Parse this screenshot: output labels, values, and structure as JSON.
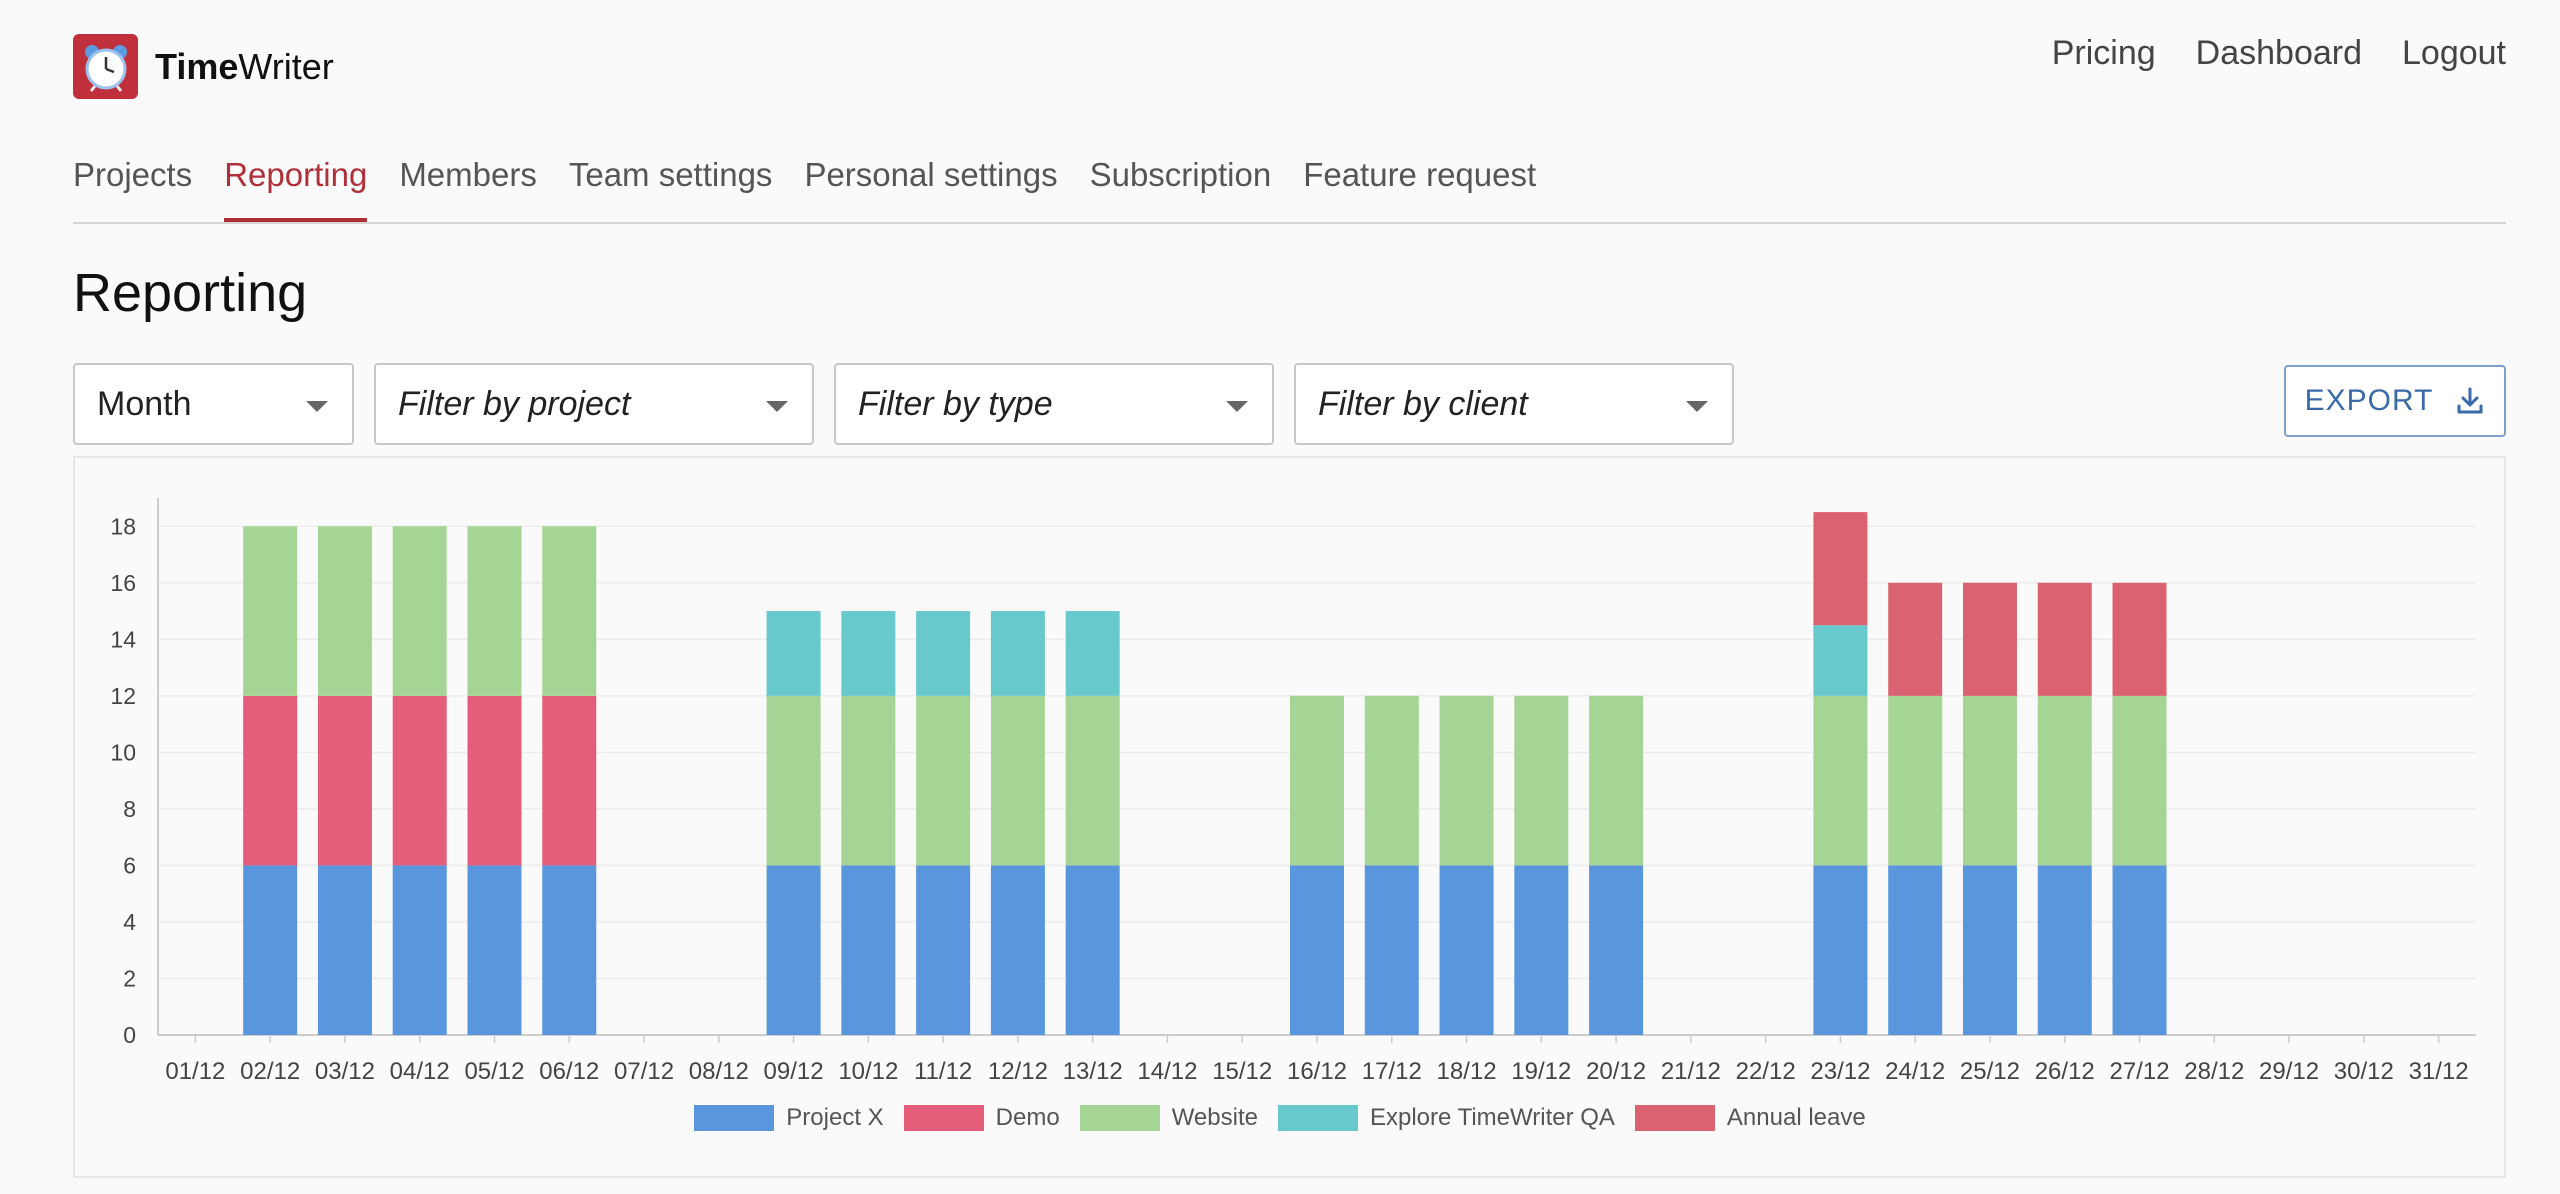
{
  "header": {
    "brand_bold": "Time",
    "brand_rest": "Writer",
    "nav": [
      {
        "label": "Pricing"
      },
      {
        "label": "Dashboard"
      },
      {
        "label": "Logout"
      }
    ]
  },
  "tabs": [
    {
      "label": "Projects",
      "active": false
    },
    {
      "label": "Reporting",
      "active": true
    },
    {
      "label": "Members",
      "active": false
    },
    {
      "label": "Team settings",
      "active": false
    },
    {
      "label": "Personal settings",
      "active": false
    },
    {
      "label": "Subscription",
      "active": false
    },
    {
      "label": "Feature request",
      "active": false
    }
  ],
  "page": {
    "title": "Reporting"
  },
  "filters": {
    "period": {
      "value": "Month"
    },
    "project": {
      "placeholder": "Filter by project"
    },
    "type": {
      "placeholder": "Filter by type"
    },
    "client": {
      "placeholder": "Filter by client"
    }
  },
  "export": {
    "label": "EXPORT"
  },
  "icons": {
    "logo": "alarm-clock-icon",
    "export": "download-icon",
    "dropdown": "caret-down-icon"
  },
  "colors": {
    "accent": "#b0303a",
    "project_x": "#5a96dd",
    "demo": "#e45e7c",
    "website": "#a5d595",
    "explore": "#68c9cd",
    "annual_leave": "#db6270"
  },
  "chart_data": {
    "type": "bar",
    "stacked": true,
    "categories": [
      "01/12",
      "02/12",
      "03/12",
      "04/12",
      "05/12",
      "06/12",
      "07/12",
      "08/12",
      "09/12",
      "10/12",
      "11/12",
      "12/12",
      "13/12",
      "14/12",
      "15/12",
      "16/12",
      "17/12",
      "18/12",
      "19/12",
      "20/12",
      "21/12",
      "22/12",
      "23/12",
      "24/12",
      "25/12",
      "26/12",
      "27/12",
      "28/12",
      "29/12",
      "30/12",
      "31/12"
    ],
    "ylim": [
      0,
      19
    ],
    "yticks": [
      0,
      2,
      4,
      6,
      8,
      10,
      12,
      14,
      16,
      18
    ],
    "grid": true,
    "legend_position": "bottom",
    "series": [
      {
        "name": "Project X",
        "color": "#5a96dd",
        "values": [
          0,
          6,
          6,
          6,
          6,
          6,
          0,
          0,
          6,
          6,
          6,
          6,
          6,
          0,
          0,
          6,
          6,
          6,
          6,
          6,
          0,
          0,
          6,
          6,
          6,
          6,
          6,
          0,
          0,
          0,
          0
        ]
      },
      {
        "name": "Demo",
        "color": "#e45e7c",
        "values": [
          0,
          6,
          6,
          6,
          6,
          6,
          0,
          0,
          0,
          0,
          0,
          0,
          0,
          0,
          0,
          0,
          0,
          0,
          0,
          0,
          0,
          0,
          0,
          0,
          0,
          0,
          0,
          0,
          0,
          0,
          0
        ]
      },
      {
        "name": "Website",
        "color": "#a5d595",
        "values": [
          0,
          6,
          6,
          6,
          6,
          6,
          0,
          0,
          6,
          6,
          6,
          6,
          6,
          0,
          0,
          6,
          6,
          6,
          6,
          6,
          0,
          0,
          6,
          6,
          6,
          6,
          6,
          0,
          0,
          0,
          0
        ]
      },
      {
        "name": "Explore TimeWriter QA",
        "color": "#68c9cd",
        "values": [
          0,
          0,
          0,
          0,
          0,
          0,
          0,
          0,
          3,
          3,
          3,
          3,
          3,
          0,
          0,
          0,
          0,
          0,
          0,
          0,
          0,
          0,
          2.5,
          0,
          0,
          0,
          0,
          0,
          0,
          0,
          0
        ]
      },
      {
        "name": "Annual leave",
        "color": "#db6270",
        "values": [
          0,
          0,
          0,
          0,
          0,
          0,
          0,
          0,
          0,
          0,
          0,
          0,
          0,
          0,
          0,
          0,
          0,
          0,
          0,
          0,
          0,
          0,
          4,
          4,
          4,
          4,
          4,
          0,
          0,
          0,
          0
        ]
      }
    ]
  }
}
